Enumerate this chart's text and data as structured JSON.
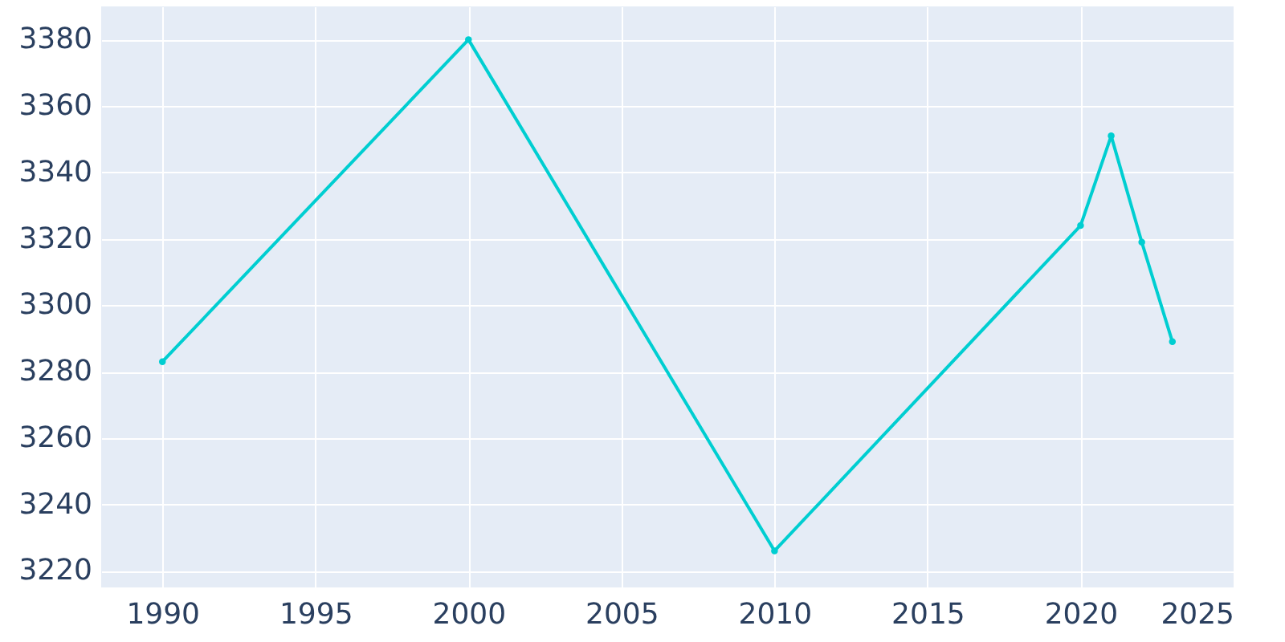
{
  "chart_data": {
    "type": "line",
    "x": [
      1990,
      2000,
      2010,
      2020,
      2021,
      2022,
      2023
    ],
    "series": [
      {
        "color": "#00ced1",
        "values": [
          3283,
          3380,
          3226,
          3324,
          3351,
          3319,
          3289
        ]
      }
    ],
    "xlim": [
      1988,
      2025
    ],
    "xticks": [
      1990,
      1995,
      2000,
      2005,
      2010,
      2015,
      2020,
      2025
    ],
    "ylim": [
      3215,
      3390
    ],
    "yticks": [
      3220,
      3240,
      3260,
      3280,
      3300,
      3320,
      3340,
      3360,
      3380
    ],
    "grid": true,
    "marker": "circle",
    "line_style": "solid"
  }
}
